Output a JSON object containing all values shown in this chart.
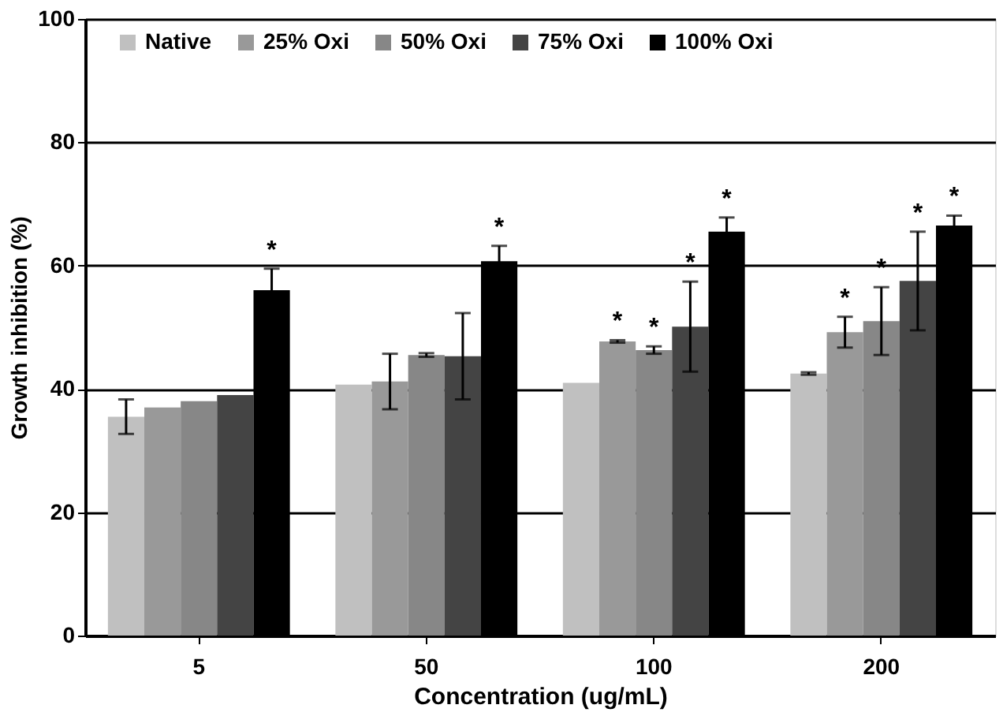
{
  "chart_data": {
    "type": "bar",
    "xlabel": "Concentration (ug/mL)",
    "ylabel": "Growth inhibition (%)",
    "categories": [
      "5",
      "50",
      "100",
      "200"
    ],
    "series": [
      {
        "name": "Native",
        "color": "#c0c0c0",
        "values": [
          35.5,
          40.7,
          41.0,
          42.5
        ],
        "errors": [
          2.8,
          null,
          null,
          0.2
        ],
        "value_labels": [
          null,
          null,
          null,
          null
        ]
      },
      {
        "name": "25% Oxi",
        "color": "#999999",
        "values": [
          37.0,
          41.2,
          47.7,
          49.2
        ],
        "errors": [
          null,
          4.5,
          0.2,
          2.5
        ],
        "value_labels": [
          null,
          null,
          "*",
          "*"
        ]
      },
      {
        "name": "50% Oxi",
        "color": "#878787",
        "values": [
          38.0,
          45.5,
          46.3,
          51.0
        ],
        "errors": [
          null,
          0.3,
          0.6,
          5.5
        ],
        "value_labels": [
          null,
          null,
          "*",
          "*"
        ]
      },
      {
        "name": "75% Oxi",
        "color": "#444444",
        "values": [
          39.0,
          45.3,
          50.1,
          57.5
        ],
        "errors": [
          null,
          7.0,
          7.3,
          8.0
        ],
        "value_labels": [
          null,
          null,
          "*",
          "*"
        ]
      },
      {
        "name": "100% Oxi",
        "color": "#000000",
        "values": [
          56.0,
          60.7,
          65.5,
          66.5
        ],
        "errors": [
          3.5,
          2.5,
          2.3,
          1.6
        ],
        "value_labels": [
          "*",
          "*",
          "*",
          "*"
        ]
      }
    ],
    "ylim": [
      0,
      100
    ],
    "yticks": [
      0,
      20,
      40,
      60,
      80,
      100
    ],
    "grid": "y",
    "legend": "top"
  }
}
